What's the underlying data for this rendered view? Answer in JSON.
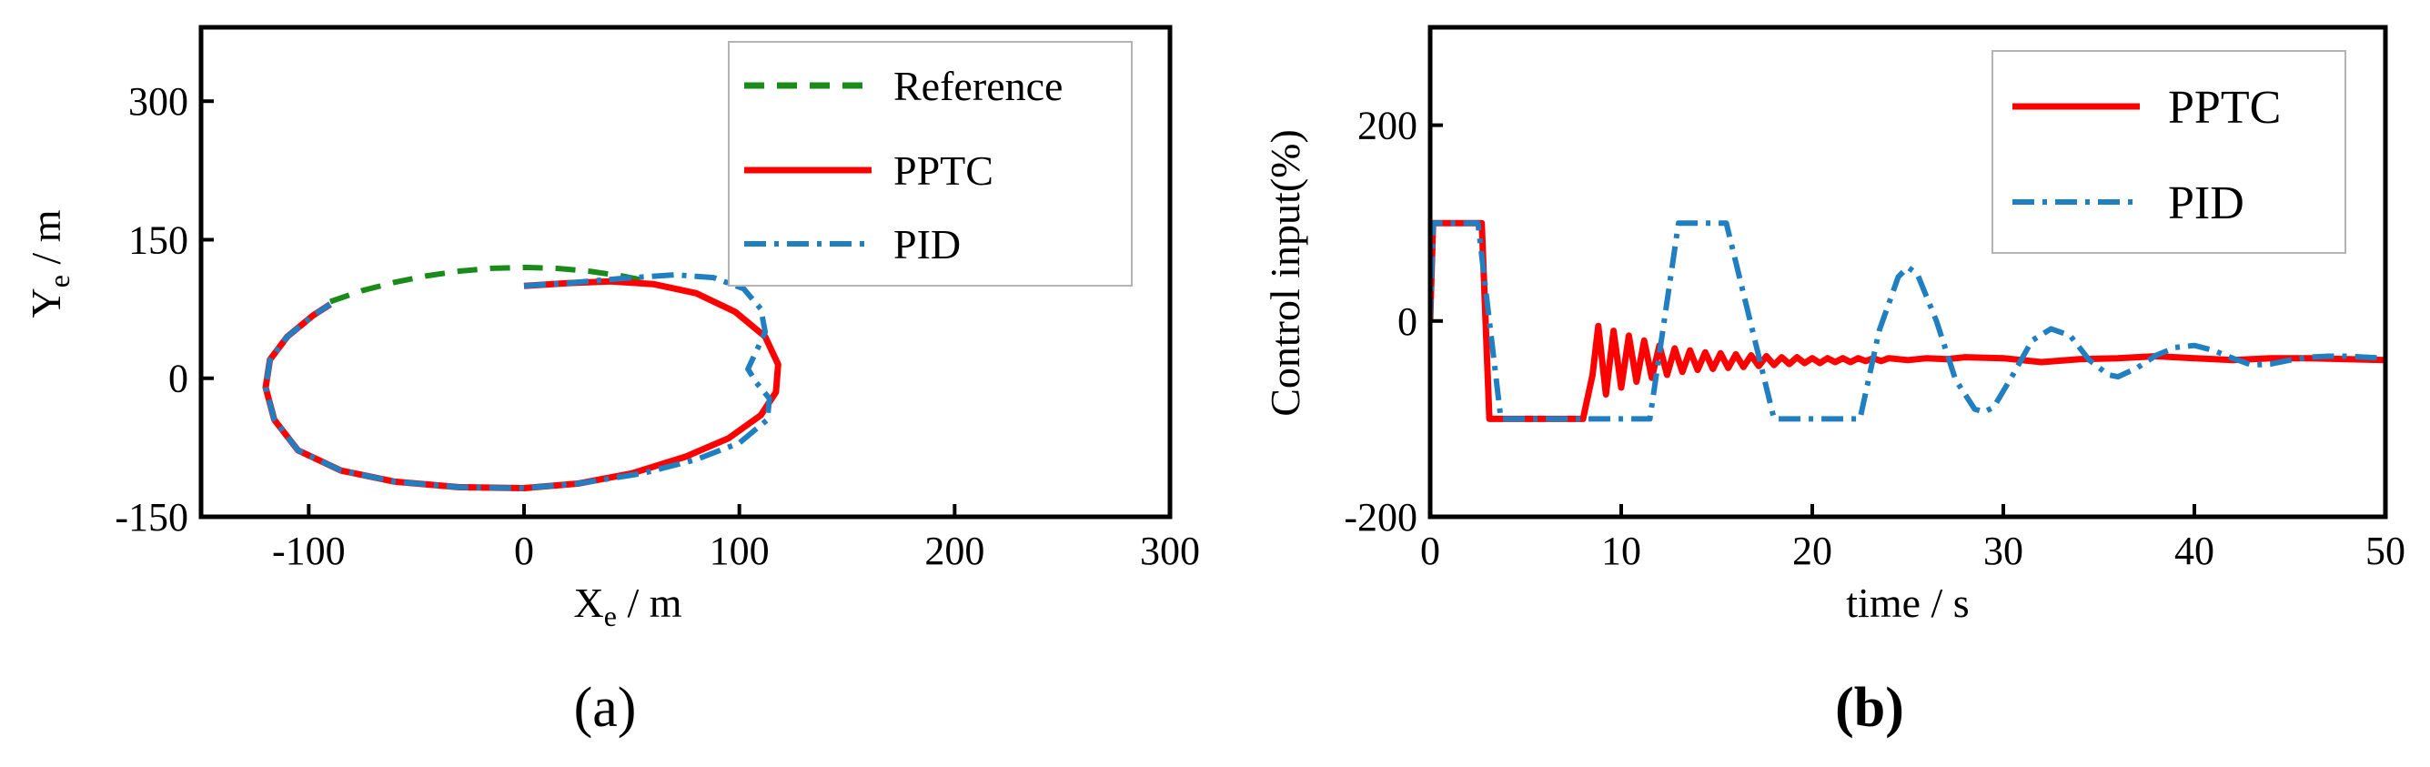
{
  "chart_data": [
    {
      "type": "line",
      "panel_label": "(a)",
      "xlabel": "X",
      "xlabel_sub": "e",
      "xlabel_unit": " / m",
      "ylabel": "Y",
      "ylabel_sub": "e",
      "ylabel_unit": " / m",
      "xlim": [
        -150,
        300
      ],
      "ylim": [
        -150,
        380
      ],
      "xticks": [
        -100,
        0,
        100,
        200,
        300
      ],
      "yticks": [
        -150,
        0,
        150,
        300
      ],
      "legend_position": "top-right",
      "series": [
        {
          "name": "Reference",
          "color": "#1a8a1a",
          "style": "dashed",
          "points": [
            [
              -90,
              83
            ],
            [
              -75,
              95
            ],
            [
              -60,
              104
            ],
            [
              -45,
              111
            ],
            [
              -30,
              116
            ],
            [
              -15,
              119
            ],
            [
              0,
              120
            ],
            [
              15,
              119
            ],
            [
              30,
              116
            ],
            [
              45,
              111
            ],
            [
              58,
              105
            ]
          ]
        },
        {
          "name": "PPTC",
          "color": "#ff0000",
          "style": "solid",
          "points": [
            [
              0,
              100
            ],
            [
              20,
              103
            ],
            [
              40,
              105
            ],
            [
              60,
              102
            ],
            [
              80,
              92
            ],
            [
              98,
              72
            ],
            [
              112,
              45
            ],
            [
              118,
              15
            ],
            [
              117,
              -15
            ],
            [
              110,
              -40
            ],
            [
              95,
              -65
            ],
            [
              75,
              -85
            ],
            [
              50,
              -103
            ],
            [
              25,
              -114
            ],
            [
              0,
              -119
            ],
            [
              -30,
              -118
            ],
            [
              -60,
              -112
            ],
            [
              -85,
              -100
            ],
            [
              -105,
              -78
            ],
            [
              -116,
              -45
            ],
            [
              -120,
              -10
            ],
            [
              -118,
              20
            ],
            [
              -110,
              45
            ],
            [
              -98,
              68
            ],
            [
              -90,
              80
            ]
          ]
        },
        {
          "name": "PID",
          "color": "#1f7fc0",
          "style": "dashdot",
          "points": [
            [
              0,
              100
            ],
            [
              20,
              103
            ],
            [
              45,
              108
            ],
            [
              70,
              112
            ],
            [
              88,
              109
            ],
            [
              102,
              97
            ],
            [
              110,
              75
            ],
            [
              112,
              50
            ],
            [
              108,
              30
            ],
            [
              104,
              10
            ],
            [
              108,
              -5
            ],
            [
              114,
              -22
            ],
            [
              113,
              -45
            ],
            [
              100,
              -70
            ],
            [
              80,
              -88
            ],
            [
              55,
              -103
            ],
            [
              25,
              -114
            ],
            [
              0,
              -119
            ],
            [
              -30,
              -118
            ],
            [
              -60,
              -112
            ],
            [
              -85,
              -100
            ],
            [
              -105,
              -78
            ],
            [
              -116,
              -45
            ],
            [
              -120,
              -10
            ],
            [
              -118,
              20
            ],
            [
              -110,
              45
            ],
            [
              -98,
              68
            ],
            [
              -90,
              80
            ]
          ]
        }
      ]
    },
    {
      "type": "line",
      "panel_label": "(b)",
      "xlabel": "time / s",
      "ylabel": "Control input(%)",
      "xlim": [
        0,
        50
      ],
      "ylim": [
        -200,
        300
      ],
      "xticks": [
        0,
        10,
        20,
        30,
        40,
        50
      ],
      "yticks": [
        -200,
        0,
        200
      ],
      "legend_position": "top-right",
      "series": [
        {
          "name": "PPTC",
          "color": "#ff0000",
          "style": "solid",
          "points": [
            [
              0,
              0
            ],
            [
              0.15,
              100
            ],
            [
              2.7,
              100
            ],
            [
              3.1,
              -100
            ],
            [
              8.0,
              -100
            ],
            [
              8.5,
              -55
            ],
            [
              8.8,
              -5
            ],
            [
              9.2,
              -75
            ],
            [
              9.6,
              -10
            ],
            [
              10.0,
              -68
            ],
            [
              10.4,
              -15
            ],
            [
              10.8,
              -62
            ],
            [
              11.2,
              -20
            ],
            [
              11.6,
              -58
            ],
            [
              12.0,
              -25
            ],
            [
              12.4,
              -55
            ],
            [
              12.8,
              -28
            ],
            [
              13.2,
              -52
            ],
            [
              13.6,
              -30
            ],
            [
              14.0,
              -50
            ],
            [
              14.4,
              -32
            ],
            [
              14.8,
              -49
            ],
            [
              15.2,
              -33
            ],
            [
              15.6,
              -48
            ],
            [
              16.0,
              -34
            ],
            [
              16.4,
              -47
            ],
            [
              16.8,
              -35
            ],
            [
              17.2,
              -46
            ],
            [
              17.6,
              -36
            ],
            [
              18.0,
              -45
            ],
            [
              18.4,
              -37
            ],
            [
              18.8,
              -44
            ],
            [
              19.2,
              -37
            ],
            [
              19.6,
              -43
            ],
            [
              20.0,
              -38
            ],
            [
              20.4,
              -43
            ],
            [
              20.8,
              -38
            ],
            [
              21.2,
              -42
            ],
            [
              21.6,
              -38
            ],
            [
              22.0,
              -42
            ],
            [
              22.4,
              -38
            ],
            [
              22.8,
              -41
            ],
            [
              23.2,
              -38
            ],
            [
              23.6,
              -41
            ],
            [
              24.0,
              -38
            ],
            [
              25,
              -40
            ],
            [
              26,
              -38
            ],
            [
              27,
              -39
            ],
            [
              28,
              -37
            ],
            [
              30,
              -38
            ],
            [
              32,
              -42
            ],
            [
              34,
              -39
            ],
            [
              36,
              -38
            ],
            [
              38,
              -36
            ],
            [
              40,
              -38
            ],
            [
              42,
              -40
            ],
            [
              44,
              -38
            ],
            [
              46,
              -38
            ],
            [
              48,
              -39
            ],
            [
              50,
              -40
            ]
          ]
        },
        {
          "name": "PID",
          "color": "#1f7fc0",
          "style": "dashdot",
          "points": [
            [
              0,
              0
            ],
            [
              0.15,
              100
            ],
            [
              2.5,
              100
            ],
            [
              3.7,
              -100
            ],
            [
              11.5,
              -100
            ],
            [
              13.0,
              100
            ],
            [
              15.5,
              100
            ],
            [
              18.0,
              -100
            ],
            [
              22.5,
              -100
            ],
            [
              23.5,
              -10
            ],
            [
              24.5,
              45
            ],
            [
              25,
              55
            ],
            [
              25.5,
              48
            ],
            [
              26.5,
              0
            ],
            [
              27.5,
              -60
            ],
            [
              28.5,
              -90
            ],
            [
              29,
              -93
            ],
            [
              29.5,
              -88
            ],
            [
              30.5,
              -55
            ],
            [
              31.5,
              -20
            ],
            [
              32.5,
              -8
            ],
            [
              33.5,
              -15
            ],
            [
              34.5,
              -40
            ],
            [
              35.5,
              -55
            ],
            [
              36,
              -57
            ],
            [
              37,
              -48
            ],
            [
              38,
              -35
            ],
            [
              39,
              -27
            ],
            [
              40,
              -25
            ],
            [
              41,
              -30
            ],
            [
              42,
              -38
            ],
            [
              43,
              -45
            ],
            [
              44,
              -44
            ],
            [
              45,
              -40
            ],
            [
              46,
              -37
            ],
            [
              47,
              -36
            ],
            [
              48,
              -36
            ],
            [
              49,
              -37
            ],
            [
              50,
              -38
            ]
          ]
        }
      ]
    }
  ]
}
